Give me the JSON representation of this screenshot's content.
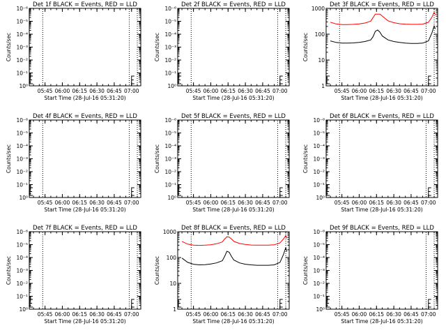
{
  "page": {
    "panels": [
      {
        "title": "Det 1f BLACK = Events, RED = LLD",
        "ylabel": "Counts/sec",
        "xlabel": "Start Time (28-Jul-16 05:31:20)",
        "yticks": [
          "10⁰",
          "10⁻¹",
          "10⁻²",
          "10⁻³",
          "10⁻⁴",
          "10⁻⁵",
          "10⁻⁶"
        ],
        "xticks": [
          "05:45",
          "06:00",
          "06:15",
          "06:30",
          "06:45",
          "07:00"
        ],
        "has_data": false
      },
      {
        "title": "Det 2f BLACK = Events, RED = LLD",
        "ylabel": "Counts/sec",
        "xlabel": "Start Time (28-Jul-16 05:31:20)",
        "yticks": [
          "10⁰",
          "10⁻¹",
          "10⁻²",
          "10⁻³",
          "10⁻⁴",
          "10⁻⁵",
          "10⁻⁶"
        ],
        "xticks": [
          "05:45",
          "06:00",
          "06:15",
          "06:30",
          "06:45",
          "07:00"
        ],
        "has_data": false
      },
      {
        "title": "Det 3f BLACK = Events, RED = LLD",
        "ylabel": "Counts/sec",
        "xlabel": "Start Time (28-Jul-16 05:31:20)",
        "yticks": [
          "1",
          "10",
          "100",
          "1000"
        ],
        "xticks": [
          "05:45",
          "06:00",
          "06:15",
          "06:30",
          "06:45",
          "07:00"
        ],
        "has_data": true
      },
      {
        "title": "Det 4f BLACK = Events, RED = LLD",
        "ylabel": "Counts/sec",
        "xlabel": "Start Time (28-Jul-16 05:31:20)",
        "yticks": [
          "10⁰",
          "10⁻¹",
          "10⁻²",
          "10⁻³",
          "10⁻⁴",
          "10⁻⁵",
          "10⁻⁶"
        ],
        "xticks": [
          "05:45",
          "06:00",
          "06:15",
          "06:30",
          "06:45",
          "07:00"
        ],
        "has_data": false
      },
      {
        "title": "Det 5f BLACK = Events, RED = LLD",
        "ylabel": "Counts/sec",
        "xlabel": "Start Time (28-Jul-16 05:31:20)",
        "yticks": [
          "10⁰",
          "10⁻¹",
          "10⁻²",
          "10⁻³",
          "10⁻⁴",
          "10⁻⁵",
          "10⁻⁶"
        ],
        "xticks": [
          "05:45",
          "06:00",
          "06:15",
          "06:30",
          "06:45",
          "07:00"
        ],
        "has_data": false
      },
      {
        "title": "Det 6f BLACK = Events, RED = LLD",
        "ylabel": "Counts/sec",
        "xlabel": "Start Time (28-Jul-16 05:31:20)",
        "yticks": [
          "10⁰",
          "10⁻¹",
          "10⁻²",
          "10⁻³",
          "10⁻⁴",
          "10⁻⁵",
          "10⁻⁶"
        ],
        "xticks": [
          "05:45",
          "06:00",
          "06:15",
          "06:30",
          "06:45",
          "07:00"
        ],
        "has_data": false
      },
      {
        "title": "Det 7f BLACK = Events, RED = LLD",
        "ylabel": "Counts/sec",
        "xlabel": "Start Time (28-Jul-16 05:31:20)",
        "yticks": [
          "10⁰",
          "10⁻¹",
          "10⁻²",
          "10⁻³",
          "10⁻⁴",
          "10⁻⁵",
          "10⁻⁶"
        ],
        "xticks": [
          "05:45",
          "06:00",
          "06:15",
          "06:30",
          "06:45",
          "07:00"
        ],
        "has_data": false
      },
      {
        "title": "Det 8f BLACK = Events, RED = LLD",
        "ylabel": "Counts/sec",
        "xlabel": "Start Time (28-Jul-16 05:31:20)",
        "yticks": [
          "1",
          "10",
          "100",
          "1000"
        ],
        "xticks": [
          "05:45",
          "06:00",
          "06:15",
          "06:30",
          "06:45",
          "07:00"
        ],
        "has_data": true
      },
      {
        "title": "Det 9f BLACK = Events, RED = LLD",
        "ylabel": "Counts/sec",
        "xlabel": "Start Time (28-Jul-16 05:31:20)",
        "yticks": [
          "10⁰",
          "10⁻¹",
          "10⁻²",
          "10⁻³",
          "10⁻⁴",
          "10⁻⁵",
          "10⁻⁶"
        ],
        "xticks": [
          "05:45",
          "06:00",
          "06:15",
          "06:30",
          "06:45",
          "07:00"
        ],
        "has_data": false
      }
    ],
    "colors": {
      "events": "#000000",
      "lld": "#ff0000",
      "axes": "#000000",
      "background": "#ffffff"
    }
  },
  "chart_data": [
    {
      "type": "line",
      "title": "Det 1f BLACK = Events, RED = LLD",
      "xlabel": "Start Time (28-Jul-16 05:31:20)",
      "ylabel": "Counts/sec",
      "yscale": "log",
      "ylim": [
        1e-06,
        1
      ],
      "xlim": [
        "05:31:20",
        "07:08:00"
      ],
      "series": []
    },
    {
      "type": "line",
      "title": "Det 2f BLACK = Events, RED = LLD",
      "xlabel": "Start Time (28-Jul-16 05:31:20)",
      "ylabel": "Counts/sec",
      "yscale": "log",
      "ylim": [
        1e-06,
        1
      ],
      "xlim": [
        "05:31:20",
        "07:08:00"
      ],
      "series": []
    },
    {
      "type": "line",
      "title": "Det 3f BLACK = Events, RED = LLD",
      "xlabel": "Start Time (28-Jul-16 05:31:20)",
      "ylabel": "Counts/sec",
      "yscale": "log",
      "ylim": [
        1,
        1000
      ],
      "xlim": [
        "05:31:20",
        "07:08:00"
      ],
      "x": [
        "05:35",
        "05:40",
        "05:45",
        "05:50",
        "05:55",
        "06:00",
        "06:05",
        "06:10",
        "06:12",
        "06:14",
        "06:16",
        "06:18",
        "06:20",
        "06:25",
        "06:30",
        "06:35",
        "06:40",
        "06:45",
        "06:50",
        "06:55",
        "07:00",
        "07:03",
        "07:05",
        "07:06"
      ],
      "series": [
        {
          "values": [
            55,
            48,
            45,
            45,
            46,
            48,
            52,
            60,
            80,
            130,
            145,
            120,
            85,
            60,
            52,
            48,
            45,
            44,
            44,
            45,
            55,
            110,
            210,
            160
          ]
        },
        {
          "values": [
            290,
            250,
            235,
            235,
            240,
            250,
            270,
            320,
            440,
            600,
            600,
            600,
            500,
            330,
            280,
            255,
            245,
            240,
            240,
            245,
            290,
            450,
            700,
            560
          ]
        }
      ]
    },
    {
      "type": "line",
      "title": "Det 4f BLACK = Events, RED = LLD",
      "xlabel": "Start Time (28-Jul-16 05:31:20)",
      "ylabel": "Counts/sec",
      "yscale": "log",
      "ylim": [
        1e-06,
        1
      ],
      "xlim": [
        "05:31:20",
        "07:08:00"
      ],
      "series": []
    },
    {
      "type": "line",
      "title": "Det 5f BLACK = Events, RED = LLD",
      "xlabel": "Start Time (28-Jul-16 05:31:20)",
      "ylabel": "Counts/sec",
      "yscale": "log",
      "ylim": [
        1e-06,
        1
      ],
      "xlim": [
        "05:31:20",
        "07:08:00"
      ],
      "series": []
    },
    {
      "type": "line",
      "title": "Det 6f BLACK = Events, RED = LLD",
      "xlabel": "Start Time (28-Jul-16 05:31:20)",
      "ylabel": "Counts/sec",
      "yscale": "log",
      "ylim": [
        1e-06,
        1
      ],
      "xlim": [
        "05:31:20",
        "07:08:00"
      ],
      "series": []
    },
    {
      "type": "line",
      "title": "Det 7f BLACK = Events, RED = LLD",
      "xlabel": "Start Time (28-Jul-16 05:31:20)",
      "ylabel": "Counts/sec",
      "yscale": "log",
      "ylim": [
        1e-06,
        1
      ],
      "xlim": [
        "05:31:20",
        "07:08:00"
      ],
      "series": []
    },
    {
      "type": "line",
      "title": "Det 8f BLACK = Events, RED = LLD",
      "xlabel": "Start Time (28-Jul-16 05:31:20)",
      "ylabel": "Counts/sec",
      "yscale": "log",
      "ylim": [
        1,
        1000
      ],
      "xlim": [
        "05:31:20",
        "07:08:00"
      ],
      "x": [
        "05:35",
        "05:40",
        "05:45",
        "05:50",
        "05:55",
        "06:00",
        "06:05",
        "06:10",
        "06:12",
        "06:14",
        "06:16",
        "06:18",
        "06:20",
        "06:25",
        "06:30",
        "06:35",
        "06:40",
        "06:45",
        "06:50",
        "06:55",
        "07:00",
        "07:03",
        "07:05",
        "07:06"
      ],
      "series": [
        {
          "values": [
            95,
            65,
            55,
            52,
            53,
            56,
            62,
            75,
            110,
            175,
            160,
            110,
            80,
            62,
            55,
            52,
            50,
            50,
            50,
            52,
            65,
            130,
            240,
            170
          ]
        },
        {
          "values": [
            420,
            330,
            300,
            295,
            300,
            310,
            340,
            400,
            520,
            640,
            620,
            520,
            420,
            350,
            320,
            305,
            300,
            300,
            300,
            310,
            370,
            520,
            700,
            560
          ]
        }
      ]
    },
    {
      "type": "line",
      "title": "Det 9f BLACK = Events, RED = LLD",
      "xlabel": "Start Time (28-Jul-16 05:31:20)",
      "ylabel": "Counts/sec",
      "yscale": "log",
      "ylim": [
        1e-06,
        1
      ],
      "xlim": [
        "05:31:20",
        "07:08:00"
      ],
      "series": []
    }
  ]
}
